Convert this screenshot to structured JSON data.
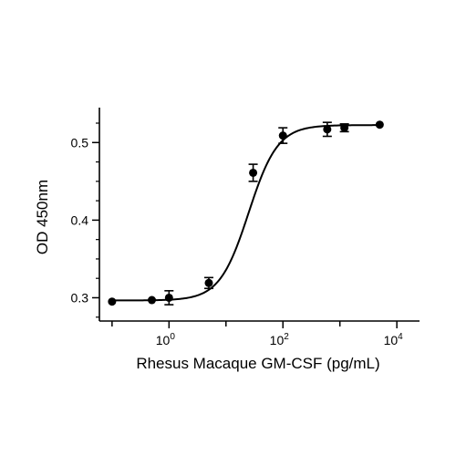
{
  "chart_data": {
    "type": "scatter",
    "xlabel": "Rhesus Macaque GM-CSF (pg/mL)",
    "ylabel": "OD 450nm",
    "x_scale": "log",
    "xlim": [
      0.06,
      25000
    ],
    "ylim": [
      0.27,
      0.545
    ],
    "x_ticks": [
      {
        "value": 1,
        "base": "10",
        "exp": "0"
      },
      {
        "value": 100,
        "base": "10",
        "exp": "2"
      },
      {
        "value": 10000,
        "base": "10",
        "exp": "4"
      }
    ],
    "y_ticks": [
      {
        "value": 0.3,
        "label": "0.3"
      },
      {
        "value": 0.4,
        "label": "0.4"
      },
      {
        "value": 0.5,
        "label": "0.5"
      }
    ],
    "grid": false,
    "series": [
      {
        "points": [
          {
            "x": 0.1,
            "y": 0.295,
            "err": 0
          },
          {
            "x": 0.5,
            "y": 0.297,
            "err": 0
          },
          {
            "x": 1.0,
            "y": 0.3,
            "err": 0.009
          },
          {
            "x": 5.0,
            "y": 0.319,
            "err": 0.007
          },
          {
            "x": 30.0,
            "y": 0.461,
            "err": 0.011
          },
          {
            "x": 100.0,
            "y": 0.509,
            "err": 0.01
          },
          {
            "x": 600.0,
            "y": 0.517,
            "err": 0.009
          },
          {
            "x": 1200.0,
            "y": 0.519,
            "err": 0.005
          },
          {
            "x": 5000.0,
            "y": 0.523,
            "err": 0
          }
        ],
        "fit": {
          "model": "4PL",
          "bottom": 0.2965,
          "top": 0.5225,
          "ec50": 25,
          "hill": 1.7
        },
        "color": "#000000"
      }
    ]
  }
}
